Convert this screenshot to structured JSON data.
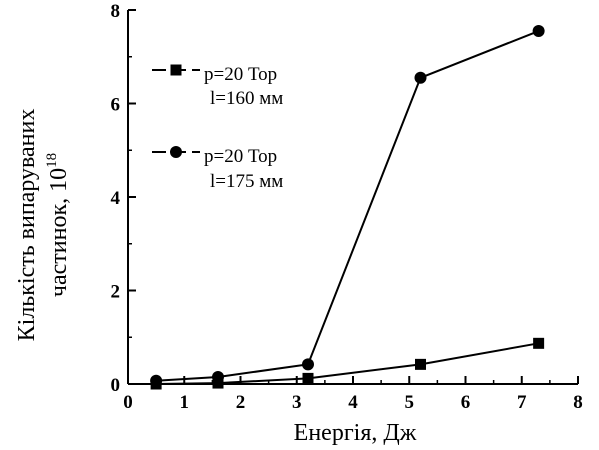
{
  "chart_data": {
    "type": "line",
    "xlabel": "Енергія, Дж",
    "ylabel_line1": "Кількість випаруваних",
    "ylabel_line2": "частинок, 10",
    "ylabel_exponent": "18",
    "xlim": [
      0,
      8
    ],
    "ylim": [
      0,
      8
    ],
    "x_ticks": [
      0,
      1,
      2,
      3,
      4,
      5,
      6,
      7,
      8
    ],
    "y_ticks": [
      0,
      2,
      4,
      6,
      8
    ],
    "x_tick_labels": [
      "0",
      "1",
      "2",
      "3",
      "4",
      "5",
      "6",
      "7",
      "8"
    ],
    "y_tick_labels": [
      "0",
      "2",
      "4",
      "6",
      "8"
    ],
    "grid": false,
    "legend_position": "top-left",
    "series": [
      {
        "name_line1": "p=20 Тор",
        "name_line2": "l=160 мм",
        "marker": "square",
        "x": [
          0.5,
          1.6,
          3.2,
          5.2,
          7.3
        ],
        "y": [
          0.0,
          0.02,
          0.12,
          0.42,
          0.87
        ]
      },
      {
        "name_line1": "p=20 Тор",
        "name_line2": "l=175 мм",
        "marker": "circle",
        "x": [
          0.5,
          1.6,
          3.2,
          5.2,
          7.3
        ],
        "y": [
          0.07,
          0.15,
          0.42,
          6.55,
          7.55
        ]
      }
    ]
  }
}
